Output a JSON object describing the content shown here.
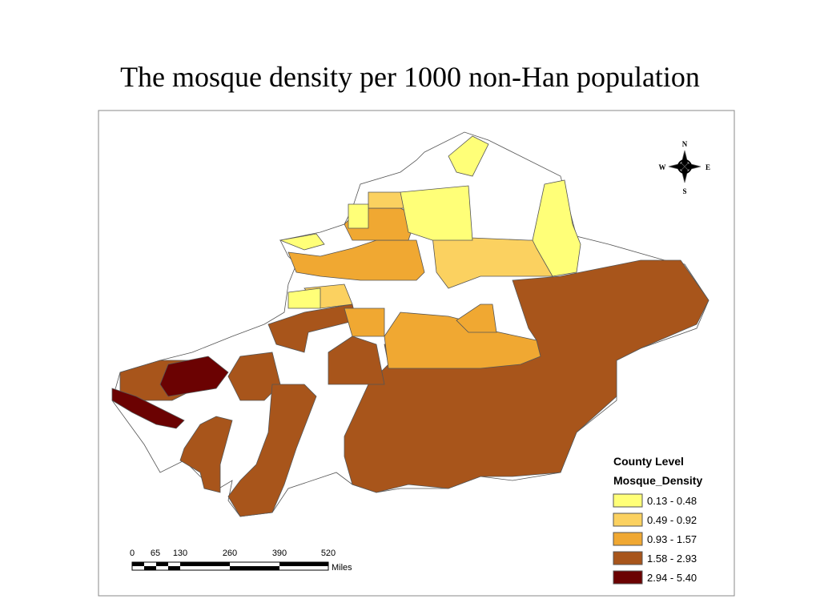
{
  "title": "The mosque density per 1000 non-Han population",
  "legend": {
    "title": [
      "County Level",
      "Mosque_Density"
    ],
    "items": [
      {
        "label": "0.13 - 0.48",
        "color": "#ffff78"
      },
      {
        "label": "0.49 - 0.92",
        "color": "#fbd160"
      },
      {
        "label": "0.93 - 1.57",
        "color": "#f0a832"
      },
      {
        "label": "1.58 - 2.93",
        "color": "#a8551b"
      },
      {
        "label": "2.94 - 5.40",
        "color": "#6b0202"
      }
    ]
  },
  "scale_bar": {
    "ticks": [
      "0",
      "65",
      "130",
      "260",
      "390",
      "520"
    ],
    "unit": "Miles"
  },
  "compass": {
    "n": "N",
    "s": "S",
    "e": "E",
    "w": "W"
  }
}
